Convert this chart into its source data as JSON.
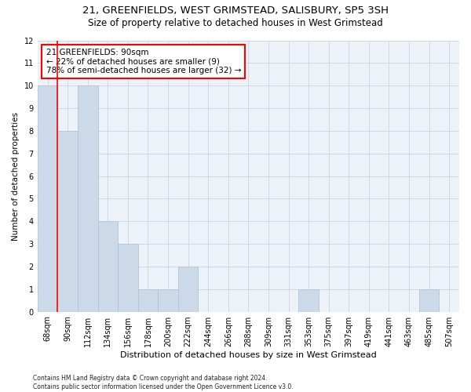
{
  "title": "21, GREENFIELDS, WEST GRIMSTEAD, SALISBURY, SP5 3SH",
  "subtitle": "Size of property relative to detached houses in West Grimstead",
  "xlabel": "Distribution of detached houses by size in West Grimstead",
  "ylabel": "Number of detached properties",
  "footer": "Contains HM Land Registry data © Crown copyright and database right 2024.\nContains public sector information licensed under the Open Government Licence v3.0.",
  "categories": [
    "68sqm",
    "90sqm",
    "112sqm",
    "134sqm",
    "156sqm",
    "178sqm",
    "200sqm",
    "222sqm",
    "244sqm",
    "266sqm",
    "288sqm",
    "309sqm",
    "331sqm",
    "353sqm",
    "375sqm",
    "397sqm",
    "419sqm",
    "441sqm",
    "463sqm",
    "485sqm",
    "507sqm"
  ],
  "values": [
    10,
    8,
    10,
    4,
    3,
    1,
    1,
    2,
    0,
    0,
    0,
    0,
    0,
    1,
    0,
    0,
    0,
    0,
    0,
    1,
    0
  ],
  "bar_color": "#ccd9e8",
  "bar_edge_color": "#aec6d8",
  "red_line_x": 1,
  "annotation_box_text": "21 GREENFIELDS: 90sqm\n← 22% of detached houses are smaller (9)\n78% of semi-detached houses are larger (32) →",
  "ylim": [
    0,
    12
  ],
  "yticks": [
    0,
    1,
    2,
    3,
    4,
    5,
    6,
    7,
    8,
    9,
    10,
    11,
    12
  ],
  "grid_color": "#d0d8e8",
  "bg_color": "#edf1f8",
  "title_fontsize": 9.5,
  "subtitle_fontsize": 8.5,
  "annotation_fontsize": 7.5,
  "axis_fontsize": 7,
  "ylabel_fontsize": 7.5,
  "xlabel_fontsize": 8,
  "footer_fontsize": 5.5
}
